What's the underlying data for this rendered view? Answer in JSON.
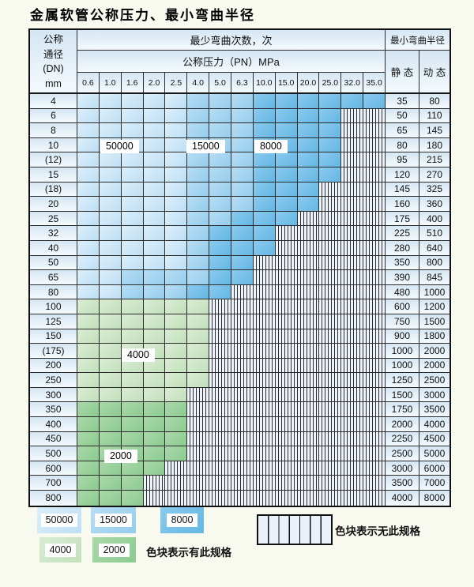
{
  "title": "金属软管公称压力、最小弯曲半径",
  "table": {
    "dn_header_lines": [
      "公称",
      "通径",
      "(DN)",
      "mm"
    ],
    "bend_header": "最少弯曲次数，次",
    "pn_header": "公称压力（PN）MPa",
    "radius_header": "最小弯曲半径",
    "static_label": "静 态",
    "dynamic_label": "动 态",
    "pressures": [
      "0.6",
      "1.0",
      "1.6",
      "2.0",
      "2.5",
      "4.0",
      "5.0",
      "6.3",
      "10.0",
      "15.0",
      "20.0",
      "25.0",
      "32.0",
      "35.0"
    ],
    "cell_legend": {
      "L": "50000次",
      "M": "15000次",
      "D": "8000次",
      "G": "4000次",
      "E": "2000次",
      "H": "无此规格"
    },
    "rows": [
      {
        "dn": "4",
        "cells": "LLLLLMMMDDDDDD",
        "static": "35",
        "dynamic": "80"
      },
      {
        "dn": "6",
        "cells": "LLLLLMMMDDDDHH",
        "static": "50",
        "dynamic": "110"
      },
      {
        "dn": "8",
        "cells": "LLLLLMMMDDDDHH",
        "static": "65",
        "dynamic": "145"
      },
      {
        "dn": "10",
        "cells": "LLLLLMMMDDDDHH",
        "static": "80",
        "dynamic": "180"
      },
      {
        "dn": "(12)",
        "cells": "LLLLLMMMDDDDHH",
        "static": "95",
        "dynamic": "215"
      },
      {
        "dn": "15",
        "cells": "LLLLLMMMDDDDHH",
        "static": "120",
        "dynamic": "270"
      },
      {
        "dn": "(18)",
        "cells": "LLLLLMMMDDDHHH",
        "static": "145",
        "dynamic": "325"
      },
      {
        "dn": "20",
        "cells": "LLLLLMMMDDDHHH",
        "static": "160",
        "dynamic": "360"
      },
      {
        "dn": "25",
        "cells": "LLLLLMMDDDHHHH",
        "static": "175",
        "dynamic": "400"
      },
      {
        "dn": "32",
        "cells": "LLLLLMDDDHHHHH",
        "static": "225",
        "dynamic": "510"
      },
      {
        "dn": "40",
        "cells": "LLLLLMDDDHHHHH",
        "static": "280",
        "dynamic": "640"
      },
      {
        "dn": "50",
        "cells": "LLLLLMDDHHHHHH",
        "static": "350",
        "dynamic": "800"
      },
      {
        "dn": "65",
        "cells": "LLMMMMDDHHHHHH",
        "static": "390",
        "dynamic": "845"
      },
      {
        "dn": "80",
        "cells": "LLMMMDDHHHHHHH",
        "static": "480",
        "dynamic": "1000"
      },
      {
        "dn": "100",
        "cells": "GGGGGGHHHHHHHH",
        "static": "600",
        "dynamic": "1200"
      },
      {
        "dn": "125",
        "cells": "GGGGGGHHHHHHHH",
        "static": "750",
        "dynamic": "1500"
      },
      {
        "dn": "150",
        "cells": "GGGGGGHHHHHHHH",
        "static": "900",
        "dynamic": "1800"
      },
      {
        "dn": "(175)",
        "cells": "GGGGGGHHHHHHHH",
        "static": "1000",
        "dynamic": "2000"
      },
      {
        "dn": "200",
        "cells": "GGGGGGHHHHHHHH",
        "static": "1000",
        "dynamic": "2000"
      },
      {
        "dn": "250",
        "cells": "GGGGGGHHHHHHHH",
        "static": "1250",
        "dynamic": "2500"
      },
      {
        "dn": "300",
        "cells": "GGGGGHHHHHHHHH",
        "static": "1500",
        "dynamic": "3000"
      },
      {
        "dn": "350",
        "cells": "EEEEEHHHHHHHHH",
        "static": "1750",
        "dynamic": "3500"
      },
      {
        "dn": "400",
        "cells": "EEEEEHHHHHHHHH",
        "static": "2000",
        "dynamic": "4000"
      },
      {
        "dn": "450",
        "cells": "EEEEEHHHHHHHHH",
        "static": "2250",
        "dynamic": "4500"
      },
      {
        "dn": "500",
        "cells": "EEEEEHHHHHHHHH",
        "static": "2500",
        "dynamic": "5000"
      },
      {
        "dn": "600",
        "cells": "EEEEHHHHHHHHHH",
        "static": "3000",
        "dynamic": "6000"
      },
      {
        "dn": "700",
        "cells": "EEEHHHHHHHHHHH",
        "static": "3500",
        "dynamic": "7000"
      },
      {
        "dn": "800",
        "cells": "EEEHHHHHHHHHHH",
        "static": "4000",
        "dynamic": "8000"
      }
    ]
  },
  "float_labels": [
    {
      "text": "50000"
    },
    {
      "text": "15000"
    },
    {
      "text": "8000"
    },
    {
      "text": "4000"
    },
    {
      "text": "2000"
    }
  ],
  "legend": {
    "swatches": [
      {
        "label": "50000",
        "type": "L"
      },
      {
        "label": "15000",
        "type": "M"
      },
      {
        "label": "8000",
        "type": "D"
      },
      {
        "label": "4000",
        "type": "G"
      },
      {
        "label": "2000",
        "type": "E"
      }
    ],
    "has_spec_text": "色块表示有此规格",
    "no_spec_text": "色块表示无此规格"
  },
  "colors": {
    "blue_50000": "#cde6f7",
    "blue_15000": "#a5d4f0",
    "blue_8000": "#79c2e9",
    "green_4000": "#cde6c7",
    "green_2000": "#99d19b",
    "hatch_bg": "#edf4fb",
    "label_cell_bg": "#e4eff8",
    "grid_line": "#2b2b2b"
  }
}
